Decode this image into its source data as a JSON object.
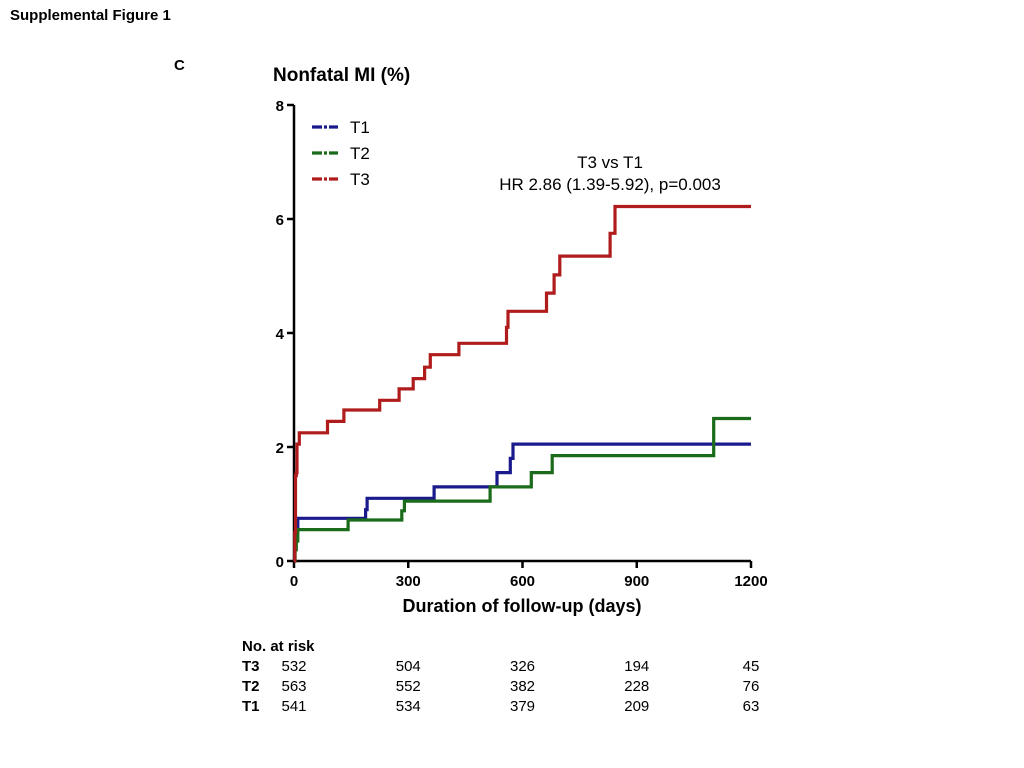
{
  "figure_title": "Supplemental Figure 1",
  "panel_label": "C",
  "chart_data": {
    "type": "line",
    "title": "Nonfatal MI (%)",
    "xlabel": "Duration of follow-up (days)",
    "ylabel": "",
    "xlim": [
      0,
      1200
    ],
    "ylim": [
      0,
      8
    ],
    "xticks": [
      0,
      300,
      600,
      900,
      1200
    ],
    "yticks": [
      0,
      2,
      4,
      6,
      8
    ],
    "grid": false,
    "legend_position": "top-left",
    "annotation": [
      "T3 vs T1",
      "HR 2.86 (1.39-5.92), p=0.003"
    ],
    "series": [
      {
        "name": "T1",
        "color": "#1a1a8c",
        "step": true,
        "points": [
          [
            0,
            0
          ],
          [
            2,
            0.2
          ],
          [
            5,
            0.55
          ],
          [
            10,
            0.75
          ],
          [
            185,
            0.75
          ],
          [
            188,
            0.9
          ],
          [
            192,
            1.1
          ],
          [
            365,
            1.1
          ],
          [
            368,
            1.3
          ],
          [
            530,
            1.3
          ],
          [
            533,
            1.55
          ],
          [
            565,
            1.55
          ],
          [
            568,
            1.8
          ],
          [
            575,
            2.05
          ],
          [
            1200,
            2.05
          ]
        ]
      },
      {
        "name": "T2",
        "color": "#1a6b1a",
        "step": true,
        "points": [
          [
            0,
            0
          ],
          [
            3,
            0.2
          ],
          [
            6,
            0.35
          ],
          [
            10,
            0.55
          ],
          [
            140,
            0.55
          ],
          [
            142,
            0.72
          ],
          [
            280,
            0.72
          ],
          [
            283,
            0.88
          ],
          [
            290,
            1.05
          ],
          [
            512,
            1.05
          ],
          [
            515,
            1.3
          ],
          [
            620,
            1.3
          ],
          [
            623,
            1.55
          ],
          [
            675,
            1.55
          ],
          [
            678,
            1.85
          ],
          [
            1100,
            1.85
          ],
          [
            1102,
            2.5
          ],
          [
            1200,
            2.5
          ]
        ]
      },
      {
        "name": "T3",
        "color": "#b01c1c",
        "step": true,
        "points": [
          [
            0,
            0
          ],
          [
            2,
            0.5
          ],
          [
            4,
            1.5
          ],
          [
            6,
            1.55
          ],
          [
            8,
            2.05
          ],
          [
            14,
            2.25
          ],
          [
            85,
            2.25
          ],
          [
            88,
            2.45
          ],
          [
            128,
            2.45
          ],
          [
            131,
            2.65
          ],
          [
            222,
            2.65
          ],
          [
            225,
            2.82
          ],
          [
            273,
            2.82
          ],
          [
            276,
            3.02
          ],
          [
            310,
            3.02
          ],
          [
            313,
            3.2
          ],
          [
            340,
            3.2
          ],
          [
            343,
            3.4
          ],
          [
            355,
            3.4
          ],
          [
            358,
            3.62
          ],
          [
            430,
            3.62
          ],
          [
            433,
            3.82
          ],
          [
            555,
            3.82
          ],
          [
            558,
            4.1
          ],
          [
            562,
            4.38
          ],
          [
            660,
            4.38
          ],
          [
            663,
            4.7
          ],
          [
            680,
            4.7
          ],
          [
            683,
            5.02
          ],
          [
            695,
            5.02
          ],
          [
            698,
            5.35
          ],
          [
            827,
            5.35
          ],
          [
            830,
            5.75
          ],
          [
            840,
            5.75
          ],
          [
            843,
            6.22
          ],
          [
            1200,
            6.22
          ]
        ]
      }
    ]
  },
  "risk_table": {
    "header": "No. at risk",
    "rows": [
      {
        "name": "T3",
        "values": [
          "532",
          "504",
          "326",
          "194",
          "45"
        ]
      },
      {
        "name": "T2",
        "values": [
          "563",
          "552",
          "382",
          "228",
          "76"
        ]
      },
      {
        "name": "T1",
        "values": [
          "541",
          "534",
          "379",
          "209",
          "63"
        ]
      }
    ]
  }
}
